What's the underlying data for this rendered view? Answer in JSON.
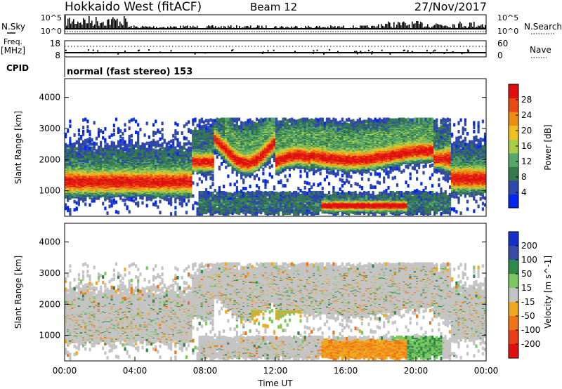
{
  "header": {
    "station": "Hokkaido West (fitACF)",
    "beam": "Beam 12",
    "date": "27/Nov/2017"
  },
  "noise_panel": {
    "left_label": "N.Sky",
    "left_ticks": [
      "10^5",
      "10^0"
    ],
    "right_ticks": [
      "10^5",
      "10^0"
    ],
    "right_label": "N.Search"
  },
  "freq_panel": {
    "left_label_line1": "Freq.",
    "left_label_line2": "[MHz]",
    "left_ticks": [
      "18",
      "8"
    ],
    "right_ticks": [
      "60",
      "0"
    ],
    "right_label": "Nave"
  },
  "cpid_panel": {
    "label": "CPID",
    "text": "normal (fast stereo) 153"
  },
  "chart_data": [
    {
      "type": "heatmap",
      "title": "",
      "ylabel": "Slant Range [km]",
      "ylim": [
        180,
        4600
      ],
      "yticks": [
        "4000",
        "3000",
        "2000",
        "1000"
      ],
      "ytick_values": [
        4000,
        3000,
        2000,
        1000
      ],
      "colorbar_label": "Power [dB]",
      "colorbar_ticks": [
        "28",
        "24",
        "20",
        "16",
        "12",
        "8",
        "4"
      ],
      "colorbar_tick_values": [
        28,
        24,
        20,
        16,
        12,
        8,
        4
      ],
      "colorbar_range": [
        0,
        32
      ],
      "colors": [
        "#0028f0",
        "#2f47aa",
        "#357a4c",
        "#55a86a",
        "#a9cf49",
        "#f0c020",
        "#ee8c14",
        "#e84a12",
        "#e01010"
      ]
    },
    {
      "type": "heatmap",
      "title": "",
      "ylabel": "Slant Range [km]",
      "xlabel": "Time UT",
      "ylim": [
        180,
        4600
      ],
      "yticks": [
        "4000",
        "3000",
        "2000",
        "1000"
      ],
      "ytick_values": [
        4000,
        3000,
        2000,
        1000
      ],
      "xticks": [
        "00:00",
        "04:00",
        "08:00",
        "12:00",
        "16:00",
        "20:00",
        "00:00"
      ],
      "xtick_hours": [
        0,
        4,
        8,
        12,
        16,
        20,
        24
      ],
      "colorbar_label": "Velocity [m s^-1]",
      "colorbar_ticks": [
        "200",
        "100",
        "50",
        "15",
        "-15",
        "-50",
        "-100",
        "-200"
      ],
      "colorbar_bins": [
        "#1530c8",
        "#3a4aa8",
        "#2e8a48",
        "#7cc860",
        "#c4c4c4",
        "#f0a820",
        "#ee7418",
        "#e84012",
        "#e01010"
      ]
    }
  ]
}
